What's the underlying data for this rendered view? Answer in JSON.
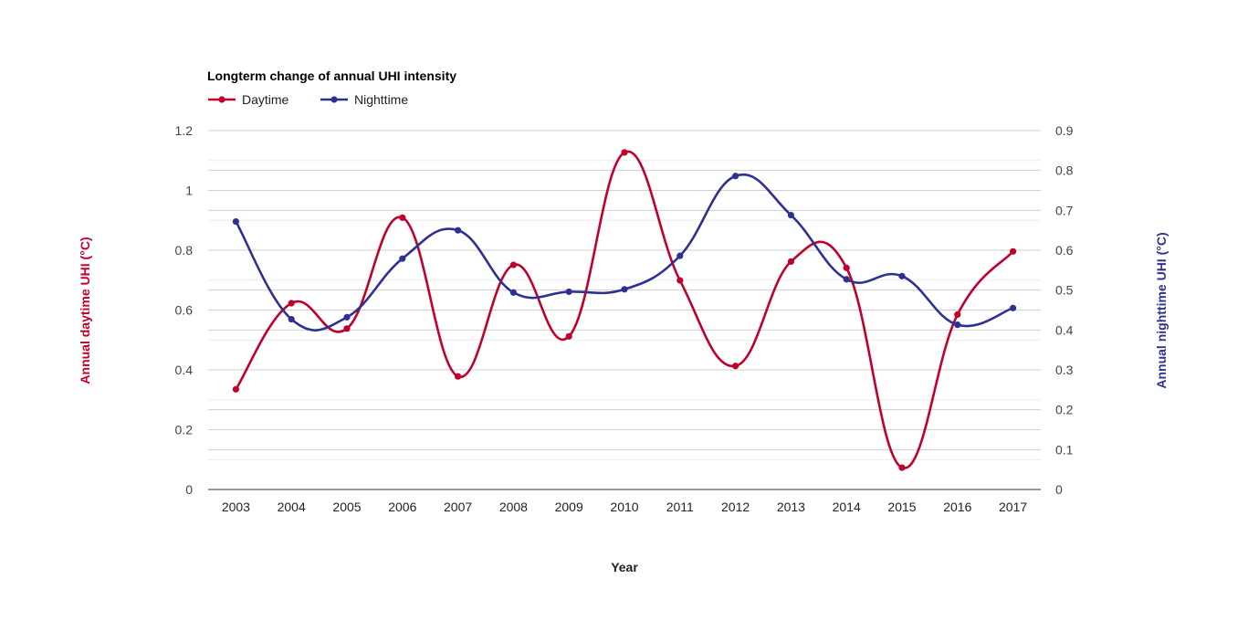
{
  "chart_data": {
    "type": "line",
    "title": "Longterm change of annual UHI intensity",
    "xlabel": "Year",
    "ylabel_left": "Annual daytime UHI (°C)",
    "ylabel_right": "Annual nighttime UHI (°C)",
    "categories": [
      "2003",
      "2004",
      "2005",
      "2006",
      "2007",
      "2008",
      "2009",
      "2010",
      "2011",
      "2012",
      "2013",
      "2014",
      "2015",
      "2016",
      "2017"
    ],
    "ylim_left": [
      0,
      1.2
    ],
    "ylim_right": [
      0,
      0.9
    ],
    "yticks_left": [
      "0",
      "0.2",
      "0.4",
      "0.6",
      "0.8",
      "1",
      "1.2"
    ],
    "yticks_right": [
      "0",
      "0.1",
      "0.2",
      "0.3",
      "0.4",
      "0.5",
      "0.6",
      "0.7",
      "0.8",
      "0.9"
    ],
    "grid": true,
    "legend_position": "top-left",
    "smooth": true,
    "series": [
      {
        "name": "Daytime",
        "axis": "left",
        "color": "#c0002a",
        "values": [
          0.335,
          0.623,
          0.538,
          0.909,
          0.378,
          0.751,
          0.512,
          1.127,
          0.699,
          0.413,
          0.762,
          0.741,
          0.073,
          0.585,
          0.796
        ]
      },
      {
        "name": "Nighttime",
        "axis": "right",
        "color": "#2e3192",
        "values": [
          0.672,
          0.427,
          0.432,
          0.579,
          0.65,
          0.494,
          0.496,
          0.502,
          0.586,
          0.786,
          0.688,
          0.527,
          0.535,
          0.413,
          0.455
        ]
      }
    ]
  }
}
